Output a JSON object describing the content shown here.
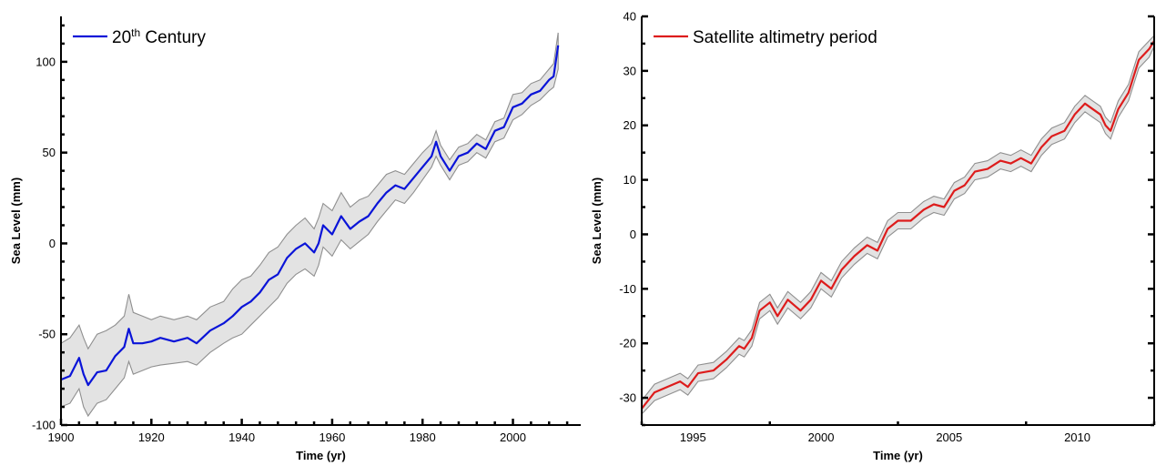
{
  "chart_data": [
    {
      "type": "line",
      "title": "",
      "xlabel": "Time (yr)",
      "ylabel": "Sea Level (mm)",
      "xlim": [
        1900,
        2015
      ],
      "ylim": [
        -100,
        125
      ],
      "xticks": [
        1900,
        1920,
        1940,
        1960,
        1980,
        2000
      ],
      "xtick_labels": [
        "1900",
        "1920",
        "1940",
        "1960",
        "1980",
        "2000"
      ],
      "yticks": [
        -100,
        -50,
        0,
        50,
        100
      ],
      "ytick_labels": [
        "-100",
        "-50",
        "0",
        "50",
        "100"
      ],
      "legend_placement": "top-left",
      "grid": false,
      "series": [
        {
          "name": "20th Century",
          "legend_base": "20",
          "legend_sup": "th",
          "legend_rest": " Century",
          "color": "#0a14d8",
          "x": [
            1900,
            1902,
            1904,
            1905,
            1906,
            1908,
            1910,
            1912,
            1914,
            1915,
            1916,
            1918,
            1920,
            1922,
            1925,
            1928,
            1930,
            1933,
            1936,
            1938,
            1940,
            1942,
            1944,
            1946,
            1948,
            1950,
            1952,
            1954,
            1956,
            1957,
            1958,
            1960,
            1962,
            1964,
            1966,
            1968,
            1970,
            1972,
            1974,
            1976,
            1978,
            1980,
            1982,
            1983,
            1984,
            1986,
            1988,
            1990,
            1992,
            1994,
            1996,
            1998,
            2000,
            2002,
            2004,
            2006,
            2008,
            2009,
            2010
          ],
          "y": [
            -75,
            -73,
            -63,
            -72,
            -78,
            -71,
            -70,
            -62,
            -57,
            -47,
            -55,
            -55,
            -54,
            -52,
            -54,
            -52,
            -55,
            -48,
            -44,
            -40,
            -35,
            -32,
            -27,
            -20,
            -17,
            -8,
            -3,
            0,
            -5,
            0,
            10,
            5,
            15,
            8,
            12,
            15,
            22,
            28,
            32,
            30,
            36,
            42,
            48,
            56,
            48,
            40,
            48,
            50,
            55,
            52,
            62,
            64,
            75,
            77,
            82,
            84,
            90,
            92,
            109
          ],
          "lower": [
            -90,
            -88,
            -80,
            -90,
            -95,
            -88,
            -86,
            -80,
            -74,
            -65,
            -72,
            -70,
            -68,
            -67,
            -66,
            -65,
            -67,
            -60,
            -55,
            -52,
            -50,
            -45,
            -40,
            -35,
            -30,
            -22,
            -17,
            -14,
            -18,
            -12,
            -2,
            -7,
            2,
            -3,
            1,
            5,
            12,
            18,
            24,
            22,
            28,
            35,
            42,
            48,
            43,
            35,
            43,
            45,
            50,
            47,
            56,
            58,
            68,
            71,
            76,
            79,
            84,
            86,
            96
          ],
          "upper": [
            -55,
            -52,
            -45,
            -52,
            -58,
            -50,
            -48,
            -45,
            -40,
            -28,
            -38,
            -40,
            -42,
            -40,
            -42,
            -40,
            -42,
            -35,
            -32,
            -25,
            -20,
            -18,
            -12,
            -5,
            -2,
            5,
            10,
            14,
            8,
            14,
            22,
            18,
            28,
            20,
            24,
            26,
            32,
            38,
            40,
            38,
            44,
            50,
            55,
            62,
            54,
            46,
            53,
            55,
            60,
            57,
            67,
            69,
            82,
            83,
            88,
            90,
            96,
            99,
            116
          ]
        }
      ]
    },
    {
      "type": "line",
      "title": "",
      "xlabel": "Time (yr)",
      "ylabel": "Sea Level (mm)",
      "xlim": [
        1993,
        2013
      ],
      "ylim": [
        -35,
        40
      ],
      "xticks": [
        1995,
        2000,
        2005,
        2010
      ],
      "xtick_labels": [
        "1995",
        "2000",
        "2005",
        "2010"
      ],
      "yticks": [
        -30,
        -20,
        -10,
        0,
        10,
        20,
        30,
        40
      ],
      "ytick_labels": [
        "-30",
        "-20",
        "-10",
        "0",
        "10",
        "20",
        "30",
        "40"
      ],
      "legend_placement": "top-left",
      "grid": false,
      "series": [
        {
          "name": "Satellite altimetry period",
          "color": "#dd1c1c",
          "x": [
            1993.0,
            1993.5,
            1994.0,
            1994.5,
            1994.8,
            1995.2,
            1995.8,
            1996.3,
            1996.8,
            1997.0,
            1997.3,
            1997.6,
            1998.0,
            1998.3,
            1998.7,
            1999.2,
            1999.6,
            2000.0,
            2000.4,
            2000.8,
            2001.3,
            2001.8,
            2002.2,
            2002.6,
            2003.0,
            2003.5,
            2004.0,
            2004.4,
            2004.8,
            2005.2,
            2005.6,
            2006.0,
            2006.5,
            2007.0,
            2007.4,
            2007.8,
            2008.2,
            2008.6,
            2009.0,
            2009.5,
            2009.9,
            2010.3,
            2010.6,
            2010.9,
            2011.1,
            2011.3,
            2011.6,
            2012.0,
            2012.4,
            2012.8,
            2013.0
          ],
          "y": [
            -32,
            -29,
            -28,
            -27,
            -28,
            -25.5,
            -25,
            -23,
            -20.5,
            -21,
            -19,
            -14,
            -12.5,
            -15,
            -12,
            -14,
            -12,
            -8.5,
            -10,
            -6.5,
            -4,
            -2,
            -3,
            1,
            2.5,
            2.5,
            4.5,
            5.5,
            5,
            8,
            9,
            11.5,
            12,
            13.5,
            13,
            14,
            13,
            16,
            18,
            19,
            22,
            24,
            23,
            22,
            20,
            19,
            23,
            26,
            32,
            34,
            35.5
          ],
          "lower": [
            -33,
            -30.5,
            -29.5,
            -28.5,
            -29.5,
            -27,
            -26.5,
            -24.5,
            -22,
            -22.5,
            -20.5,
            -15.5,
            -14,
            -16.5,
            -13.5,
            -15.5,
            -13.5,
            -10,
            -11.5,
            -8,
            -5.5,
            -3.5,
            -4.5,
            -0.5,
            1,
            1,
            3,
            4,
            3.5,
            6.5,
            7.5,
            10,
            10.5,
            12,
            11.5,
            12.5,
            11.5,
            14.5,
            16.5,
            17.5,
            20.5,
            22.5,
            21.5,
            20.5,
            18.5,
            17.5,
            21.5,
            24.5,
            30.5,
            32.5,
            34.5
          ],
          "upper": [
            -30.5,
            -27.5,
            -26.5,
            -25.5,
            -26.5,
            -24,
            -23.5,
            -21.5,
            -19,
            -19.5,
            -17.5,
            -12.5,
            -11,
            -13.5,
            -10.5,
            -12.5,
            -10.5,
            -7,
            -8.5,
            -5,
            -2.5,
            -0.5,
            -1.5,
            2.5,
            4,
            4,
            6,
            7,
            6.5,
            9.5,
            10.5,
            13,
            13.5,
            15,
            14.5,
            15.5,
            14.5,
            17.5,
            19.5,
            20.5,
            23.5,
            25.5,
            24.5,
            23.5,
            21.5,
            20.5,
            24.5,
            27.5,
            33.5,
            35.5,
            36.5
          ]
        }
      ]
    }
  ]
}
